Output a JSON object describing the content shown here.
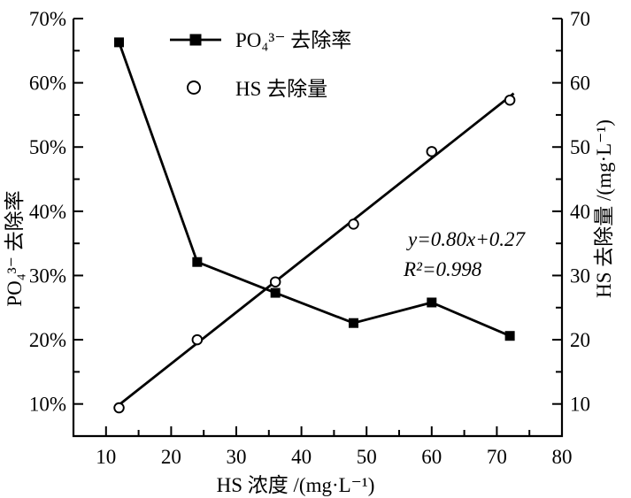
{
  "chart_data": {
    "type": "line",
    "title": "",
    "xlabel": "HS 浓度 /(mg·L⁻¹)",
    "ylabel_left": "PO₄³⁻ 去除率",
    "ylabel_right": "HS 去除量 /(mg·L⁻¹)",
    "xlim": [
      5,
      80
    ],
    "ylim_left": [
      5,
      70
    ],
    "ylim_right": [
      5,
      70
    ],
    "x_major_ticks": [
      10,
      20,
      30,
      40,
      50,
      60,
      70,
      80
    ],
    "x_minor_ticks": [
      15,
      25,
      35,
      45,
      55,
      65,
      75
    ],
    "y_major_ticks": [
      10,
      20,
      30,
      40,
      50,
      60,
      70
    ],
    "y_minor_ticks": [
      15,
      25,
      35,
      45,
      55,
      65
    ],
    "y_tick_labels_left": [
      "10%",
      "20%",
      "30%",
      "40%",
      "50%",
      "60%",
      "70%"
    ],
    "y_tick_labels_right": [
      "10",
      "20",
      "30",
      "40",
      "50",
      "60",
      "70"
    ],
    "grid": false,
    "legend_position": "top-center-inside",
    "x": [
      12,
      24,
      36,
      48,
      60,
      72
    ],
    "series": [
      {
        "name": "PO₄³⁻ 去除率",
        "axis": "left",
        "marker": "filled-square",
        "line": "point-to-point",
        "values": [
          66.3,
          32.1,
          27.3,
          22.6,
          25.8,
          20.6
        ]
      },
      {
        "name": "HS 去除量",
        "axis": "right",
        "marker": "open-circle",
        "line": "linear-fit",
        "values": [
          9.4,
          20.0,
          29.0,
          38.0,
          49.3,
          57.3
        ]
      }
    ],
    "fit_line": {
      "slope": 0.8,
      "intercept": 0.27,
      "x_start": 11.9,
      "x_end": 72.6,
      "equation": "y=0.80x+0.27",
      "r_squared": "R²=0.998"
    }
  }
}
